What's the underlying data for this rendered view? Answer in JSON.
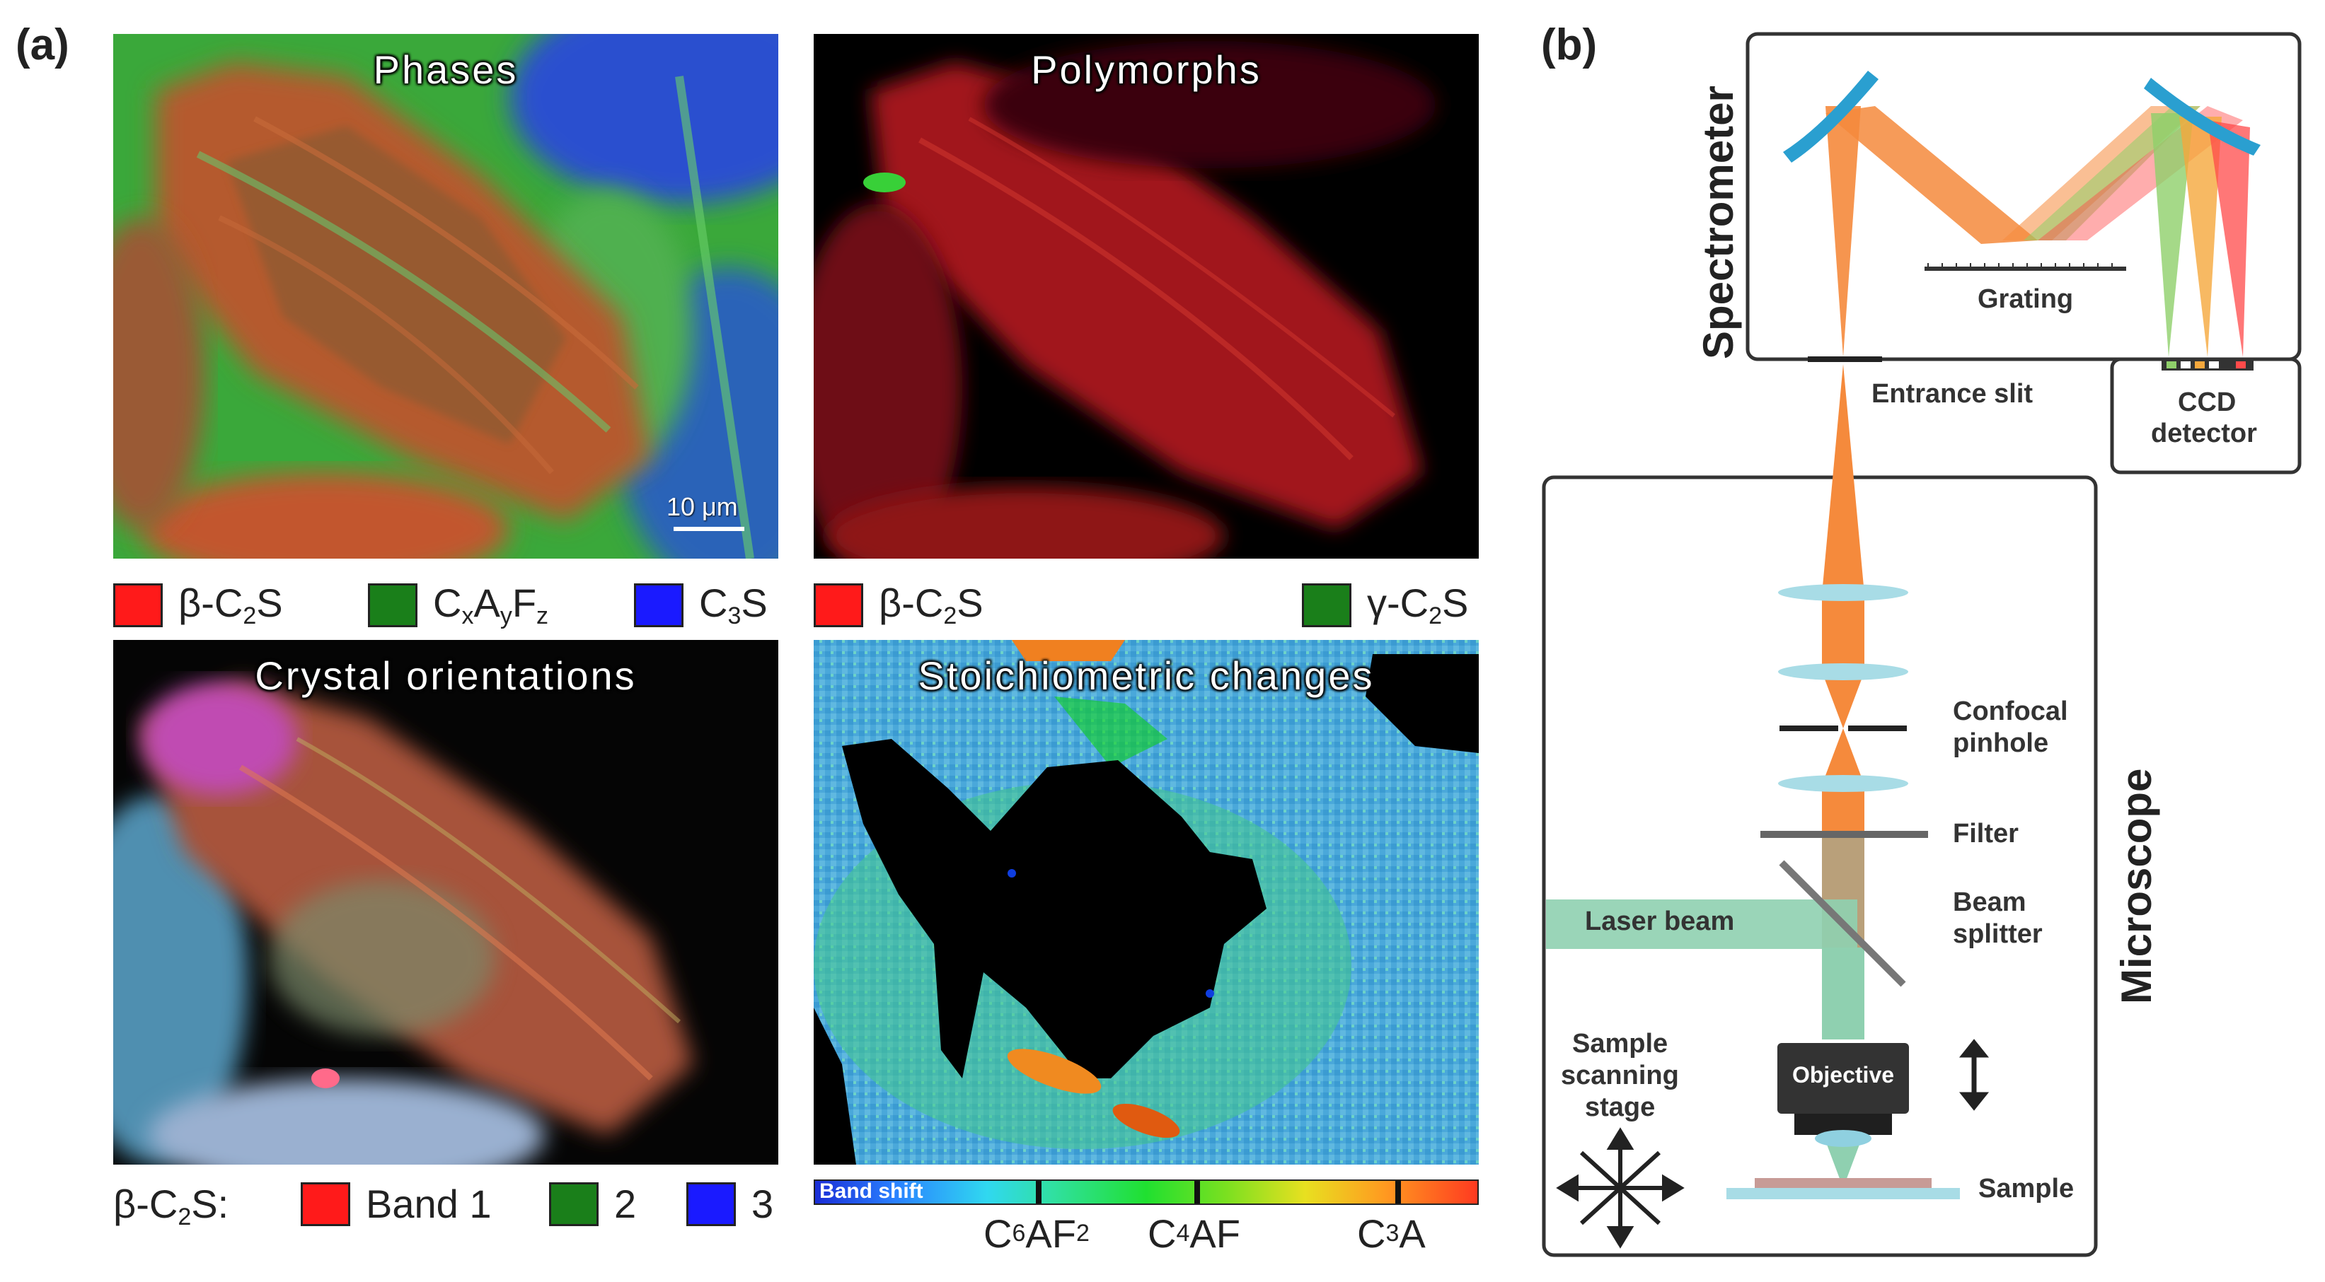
{
  "panel_a": {
    "label": "(a)",
    "phases": {
      "title": "Phases",
      "scale_bar": "10 μm"
    },
    "polymorphs": {
      "title": "Polymorphs"
    },
    "crystal": {
      "title": "Crystal orientations"
    },
    "stoich": {
      "title": "Stoichiometric changes"
    },
    "legend_phases": {
      "item1": {
        "color": "#ff1a1a",
        "text": "β-C",
        "sub": "2",
        "tail": "S"
      },
      "item2": {
        "color": "#1a7f1a",
        "text": "C",
        "sub_x": "x",
        "mid_a": "A",
        "sub_y": "y",
        "mid_f": "F",
        "sub_z": "z"
      },
      "item3": {
        "color": "#1a1aff",
        "text": "C",
        "sub": "3",
        "tail": "S"
      }
    },
    "legend_polymorphs": {
      "item1": {
        "color": "#ff1a1a",
        "text": "β-C",
        "sub": "2",
        "tail": "S"
      },
      "item2": {
        "color": "#1a7f1a",
        "text": "γ-C",
        "sub": "2",
        "tail": "S"
      }
    },
    "legend_crystal": {
      "prefix": "β-C",
      "prefix_sub": "2",
      "prefix_tail": "S:",
      "band1": {
        "color": "#ff1a1a",
        "text": "Band 1"
      },
      "band2": {
        "color": "#1a7f1a",
        "text": "2"
      },
      "band3": {
        "color": "#1a1aff",
        "text": "3"
      }
    },
    "colorbar": {
      "label": "Band shift",
      "tick1": {
        "main": "C",
        "s1": "6",
        "m": "AF",
        "s2": "2"
      },
      "tick2": {
        "main": "C",
        "s1": "4",
        "m": "AF",
        "s2": ""
      },
      "tick3": {
        "main": "C",
        "s1": "3",
        "m": "A",
        "s2": ""
      }
    }
  },
  "panel_b": {
    "label": "(b)",
    "spectrometer": "Spectrometer",
    "microscope": "Microscope",
    "grating": "Grating",
    "entrance_slit": "Entrance slit",
    "ccd_line1": "CCD",
    "ccd_line2": "detector",
    "confocal_line1": "Confocal",
    "confocal_line2": "pinhole",
    "filter": "Filter",
    "beam_line1": "Beam",
    "beam_line2": "splitter",
    "laser_beam": "Laser beam",
    "stage_line1": "Sample",
    "stage_line2": "scanning",
    "stage_line3": "stage",
    "objective": "Objective",
    "sample": "Sample"
  }
}
